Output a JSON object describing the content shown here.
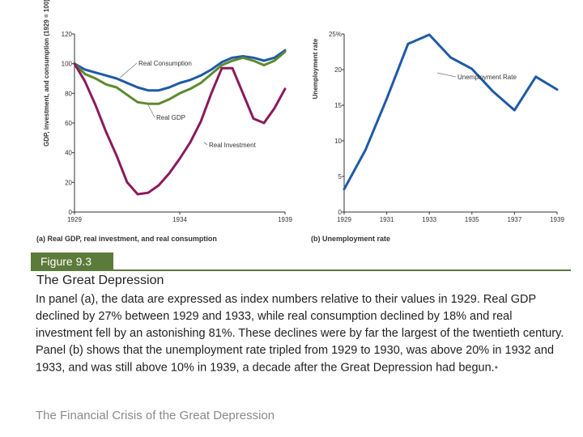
{
  "chart_data": [
    {
      "type": "line",
      "panel_label": "(a) Real GDP, real investment, and real consumption",
      "ylabel": "GDP, investment, and consumption (1929 = 100)",
      "xlim": [
        1929,
        1939
      ],
      "ylim": [
        0,
        120
      ],
      "x_ticks": [
        "1929",
        "1934",
        "1939"
      ],
      "y_ticks": [
        "0",
        "20",
        "40",
        "60",
        "80",
        "100",
        "120"
      ],
      "grid": false,
      "series": [
        {
          "name": "Real Consumption",
          "color": "#1f5aa6",
          "points": [
            [
              1929,
              100
            ],
            [
              1929.5,
              96
            ],
            [
              1930,
              94
            ],
            [
              1930.5,
              92
            ],
            [
              1931,
              90
            ],
            [
              1931.5,
              87
            ],
            [
              1932,
              84
            ],
            [
              1932.5,
              82
            ],
            [
              1933,
              82
            ],
            [
              1933.5,
              84
            ],
            [
              1934,
              87
            ],
            [
              1934.5,
              89
            ],
            [
              1935,
              92
            ],
            [
              1935.5,
              96
            ],
            [
              1936,
              101
            ],
            [
              1936.5,
              104
            ],
            [
              1937,
              105
            ],
            [
              1937.5,
              104
            ],
            [
              1938,
              102
            ],
            [
              1938.5,
              104
            ],
            [
              1939,
              109
            ]
          ]
        },
        {
          "name": "Real GDP",
          "color": "#5c8a2e",
          "points": [
            [
              1929,
              100
            ],
            [
              1929.5,
              93
            ],
            [
              1930,
              90
            ],
            [
              1930.5,
              86
            ],
            [
              1931,
              84
            ],
            [
              1931.5,
              79
            ],
            [
              1932,
              74
            ],
            [
              1932.5,
              73
            ],
            [
              1933,
              73
            ],
            [
              1933.5,
              76
            ],
            [
              1934,
              80
            ],
            [
              1934.5,
              83
            ],
            [
              1935,
              87
            ],
            [
              1935.5,
              93
            ],
            [
              1936,
              99
            ],
            [
              1936.5,
              102
            ],
            [
              1937,
              104
            ],
            [
              1937.5,
              102
            ],
            [
              1938,
              99
            ],
            [
              1938.5,
              102
            ],
            [
              1939,
              108
            ]
          ]
        },
        {
          "name": "Real Investment",
          "color": "#8b1a5c",
          "points": [
            [
              1929,
              100
            ],
            [
              1929.5,
              88
            ],
            [
              1930,
              72
            ],
            [
              1930.5,
              54
            ],
            [
              1931,
              38
            ],
            [
              1931.5,
              20
            ],
            [
              1932,
              12
            ],
            [
              1932.5,
              13
            ],
            [
              1933,
              18
            ],
            [
              1933.5,
              26
            ],
            [
              1934,
              36
            ],
            [
              1934.5,
              47
            ],
            [
              1935,
              61
            ],
            [
              1935.5,
              80
            ],
            [
              1936,
              97
            ],
            [
              1936.5,
              97
            ],
            [
              1937,
              80
            ],
            [
              1937.5,
              63
            ],
            [
              1938,
              60
            ],
            [
              1938.5,
              70
            ],
            [
              1939,
              83
            ]
          ]
        }
      ]
    },
    {
      "type": "line",
      "panel_label": "(b) Unemployment rate",
      "ylabel": "Unemployment rate",
      "xlim": [
        1929,
        1939
      ],
      "ylim": [
        0,
        25
      ],
      "x_ticks": [
        "1929",
        "1931",
        "1933",
        "1935",
        "1937",
        "1939"
      ],
      "y_ticks": [
        "0",
        "5",
        "10",
        "15",
        "20",
        "25%"
      ],
      "grid": false,
      "series": [
        {
          "name": "Unemployment Rate",
          "color": "#1f5aa6",
          "points": [
            [
              1929,
              3.2
            ],
            [
              1930,
              8.7
            ],
            [
              1931,
              15.9
            ],
            [
              1932,
              23.6
            ],
            [
              1933,
              24.9
            ],
            [
              1934,
              21.7
            ],
            [
              1935,
              20.1
            ],
            [
              1936,
              16.9
            ],
            [
              1937,
              14.3
            ],
            [
              1938,
              19.0
            ],
            [
              1939,
              17.2
            ]
          ]
        }
      ]
    }
  ],
  "figure": {
    "tab": "Figure 9.3",
    "title": "The Great Depression",
    "caption_1": "In panel (a), the data are expressed as index numbers relative to their values in 1929. Real GDP declined by 27% between 1929 and 1933, while real consumption declined by 18% and real investment fell by an astonishing 81%. These declines were by far the largest of the twentieth century.",
    "caption_2": "Panel (b) shows that the unemployment rate tripled from 1929 to 1930, was above 20% in 1932 and 1933, and was still above 10% in 1939, a decade after the Great Depression had begun.",
    "bullet": "•",
    "footer": "The Financial Crisis of the Great Depression"
  }
}
